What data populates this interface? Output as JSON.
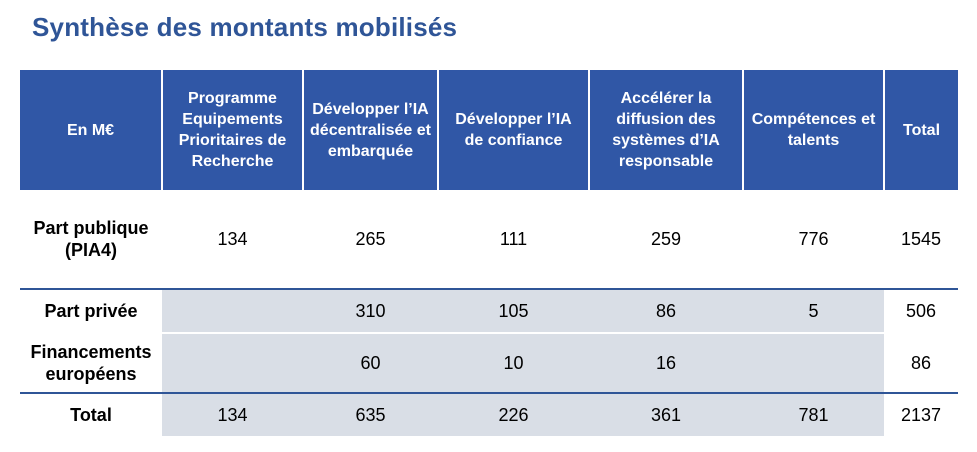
{
  "title": "Synthèse des montants mobilisés",
  "table": {
    "headers": [
      "En M€",
      "Programme Equipements Prioritaires de Recherche",
      "Développer l’IA décentralisée et embarquée",
      "Développer l’IA de confiance",
      "Accélérer la diffusion des systèmes d’IA responsable",
      "Compétences et talents",
      "Total"
    ],
    "rows": [
      {
        "label": "Part publique (PIA4)",
        "cells": [
          "134",
          "265",
          "111",
          "259",
          "776",
          "1545"
        ]
      },
      {
        "label": "Part privée",
        "cells": [
          "",
          "310",
          "105",
          "86",
          "5",
          "506"
        ]
      },
      {
        "label": "Financements européens",
        "cells": [
          "",
          "60",
          "10",
          "16",
          "",
          "86"
        ]
      },
      {
        "label": "Total",
        "cells": [
          "134",
          "635",
          "226",
          "361",
          "781",
          "2137"
        ]
      }
    ]
  },
  "colors": {
    "header_bg": "#3057A6",
    "title": "#2F5597",
    "shaded_cell": "#D9DEE6"
  }
}
